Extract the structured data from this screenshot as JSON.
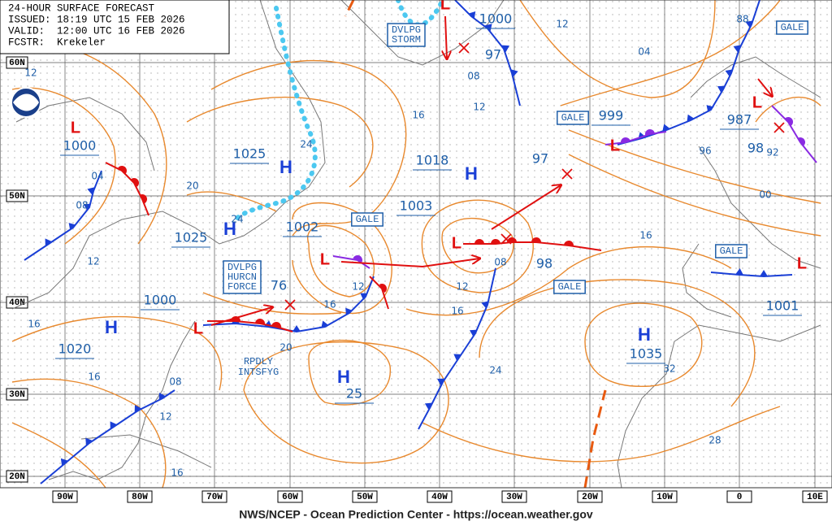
{
  "header": {
    "lines": [
      "24-HOUR SURFACE FORECAST",
      "ISSUED: 18:19 UTC 15 FEB 2026",
      "VALID:  12:00 UTC 16 FEB 2026",
      "FCSTR:  Krekeler"
    ]
  },
  "lat_labels": [
    "60N",
    "50N",
    "40N",
    "30N",
    "20N"
  ],
  "lon_labels": [
    "90W",
    "80W",
    "70W",
    "60W",
    "50W",
    "40W",
    "30W",
    "20W",
    "10W",
    "0",
    "10E"
  ],
  "centers": [
    {
      "symbol": "H",
      "pressure": "1025"
    },
    {
      "symbol": "H",
      "pressure": "1025"
    },
    {
      "symbol": "H",
      "pressure": "1018"
    },
    {
      "symbol": "H",
      "pressure": "1020"
    },
    {
      "symbol": "H",
      "pressure": "25"
    },
    {
      "symbol": "H",
      "pressure": "1035"
    },
    {
      "symbol": "L",
      "pressure": "1000"
    },
    {
      "symbol": "L",
      "pressure": "1002"
    },
    {
      "symbol": "L",
      "pressure": "1003"
    },
    {
      "symbol": "L",
      "pressure": "1000"
    },
    {
      "symbol": "L",
      "pressure": "999"
    },
    {
      "symbol": "L",
      "pressure": "987"
    },
    {
      "symbol": "L",
      "pressure": "1001"
    },
    {
      "symbol": "L",
      "pressure": "1000"
    }
  ],
  "forecast_pressures": [
    "97",
    "97",
    "98",
    "98",
    "76"
  ],
  "isobar_labels": [
    "12",
    "04",
    "08",
    "20",
    "12",
    "16",
    "16",
    "08",
    "12",
    "16",
    "24",
    "24",
    "16",
    "12",
    "08",
    "12",
    "04",
    "88",
    "96",
    "92",
    "00",
    "16",
    "08",
    "12",
    "16",
    "12",
    "16",
    "20",
    "24",
    "32",
    "28"
  ],
  "boxed_labels": [
    [
      "GALE"
    ],
    [
      "GALE"
    ],
    [
      "GALE"
    ],
    [
      "GALE"
    ],
    [
      "GALE"
    ],
    [
      "DVLPG",
      "STORM"
    ],
    [
      "DVLPG",
      "HURCN",
      "FORCE"
    ]
  ],
  "notes": [
    [
      "RPDLY",
      "INTSFYG"
    ]
  ],
  "footer": "NWS/NCEP - Ocean Prediction Center - https://ocean.weather.gov"
}
